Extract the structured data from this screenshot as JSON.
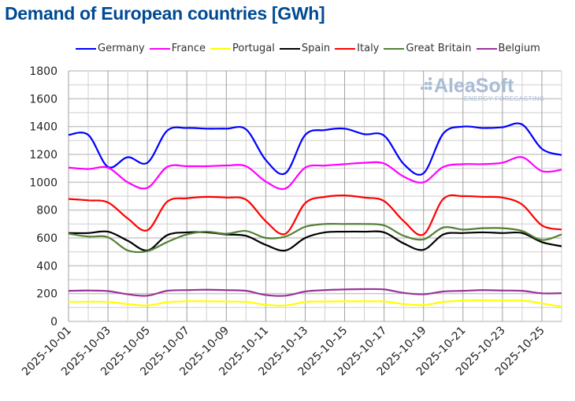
{
  "chart_data": {
    "type": "line",
    "title": "Demand of European countries [GWh]",
    "xlabel": "",
    "ylabel": "",
    "ylim": [
      0,
      1800
    ],
    "yticks": [
      0,
      200,
      400,
      600,
      800,
      1000,
      1200,
      1400,
      1600,
      1800
    ],
    "grid": true,
    "legend_position": "top",
    "x": [
      "2025-10-01",
      "2025-10-02",
      "2025-10-03",
      "2025-10-04",
      "2025-10-05",
      "2025-10-06",
      "2025-10-07",
      "2025-10-08",
      "2025-10-09",
      "2025-10-10",
      "2025-10-11",
      "2025-10-12",
      "2025-10-13",
      "2025-10-14",
      "2025-10-15",
      "2025-10-16",
      "2025-10-17",
      "2025-10-18",
      "2025-10-19",
      "2025-10-20",
      "2025-10-21",
      "2025-10-22",
      "2025-10-23",
      "2025-10-24",
      "2025-10-25",
      "2025-10-26"
    ],
    "xtick_labels": [
      "2025-10-01",
      "2025-10-03",
      "2025-10-05",
      "2025-10-07",
      "2025-10-09",
      "2025-10-11",
      "2025-10-13",
      "2025-10-15",
      "2025-10-17",
      "2025-10-19",
      "2025-10-21",
      "2025-10-23",
      "2025-10-25"
    ],
    "series": [
      {
        "name": "Germany",
        "color": "#0000ff",
        "values": [
          1340,
          1340,
          1110,
          1180,
          1140,
          1370,
          1390,
          1385,
          1385,
          1380,
          1160,
          1065,
          1340,
          1375,
          1385,
          1345,
          1335,
          1130,
          1065,
          1350,
          1400,
          1390,
          1395,
          1415,
          1240,
          1195
        ]
      },
      {
        "name": "France",
        "color": "#ff00ff",
        "values": [
          1105,
          1095,
          1105,
          1000,
          960,
          1110,
          1115,
          1115,
          1120,
          1115,
          1005,
          955,
          1105,
          1120,
          1130,
          1140,
          1135,
          1040,
          1000,
          1110,
          1130,
          1130,
          1140,
          1180,
          1080,
          1090
        ]
      },
      {
        "name": "Portugal",
        "color": "#ffff00",
        "values": [
          140,
          142,
          140,
          125,
          115,
          138,
          145,
          145,
          143,
          140,
          120,
          115,
          140,
          143,
          145,
          145,
          143,
          125,
          118,
          140,
          150,
          152,
          150,
          150,
          130,
          105
        ]
      },
      {
        "name": "Spain",
        "color": "#000000",
        "values": [
          635,
          635,
          645,
          580,
          510,
          620,
          640,
          640,
          625,
          615,
          550,
          510,
          600,
          640,
          645,
          645,
          640,
          560,
          515,
          625,
          635,
          640,
          635,
          635,
          570,
          540
        ]
      },
      {
        "name": "Italy",
        "color": "#ff0000",
        "values": [
          880,
          870,
          855,
          740,
          655,
          860,
          885,
          895,
          890,
          875,
          720,
          630,
          850,
          895,
          905,
          890,
          865,
          720,
          625,
          880,
          900,
          895,
          890,
          840,
          690,
          660
        ]
      },
      {
        "name": "Great Britain",
        "color": "#538135",
        "values": [
          630,
          610,
          605,
          510,
          505,
          570,
          625,
          645,
          630,
          650,
          600,
          610,
          680,
          700,
          700,
          700,
          690,
          615,
          590,
          675,
          660,
          670,
          670,
          650,
          585,
          625
        ]
      },
      {
        "name": "Belgium",
        "color": "#993399",
        "values": [
          220,
          222,
          218,
          195,
          185,
          220,
          225,
          228,
          225,
          220,
          190,
          185,
          215,
          225,
          230,
          232,
          230,
          205,
          195,
          215,
          220,
          225,
          222,
          220,
          202,
          203
        ]
      }
    ]
  },
  "watermark": {
    "brand": "AleaSoft",
    "tagline": "ENERGY FORECASTING"
  }
}
